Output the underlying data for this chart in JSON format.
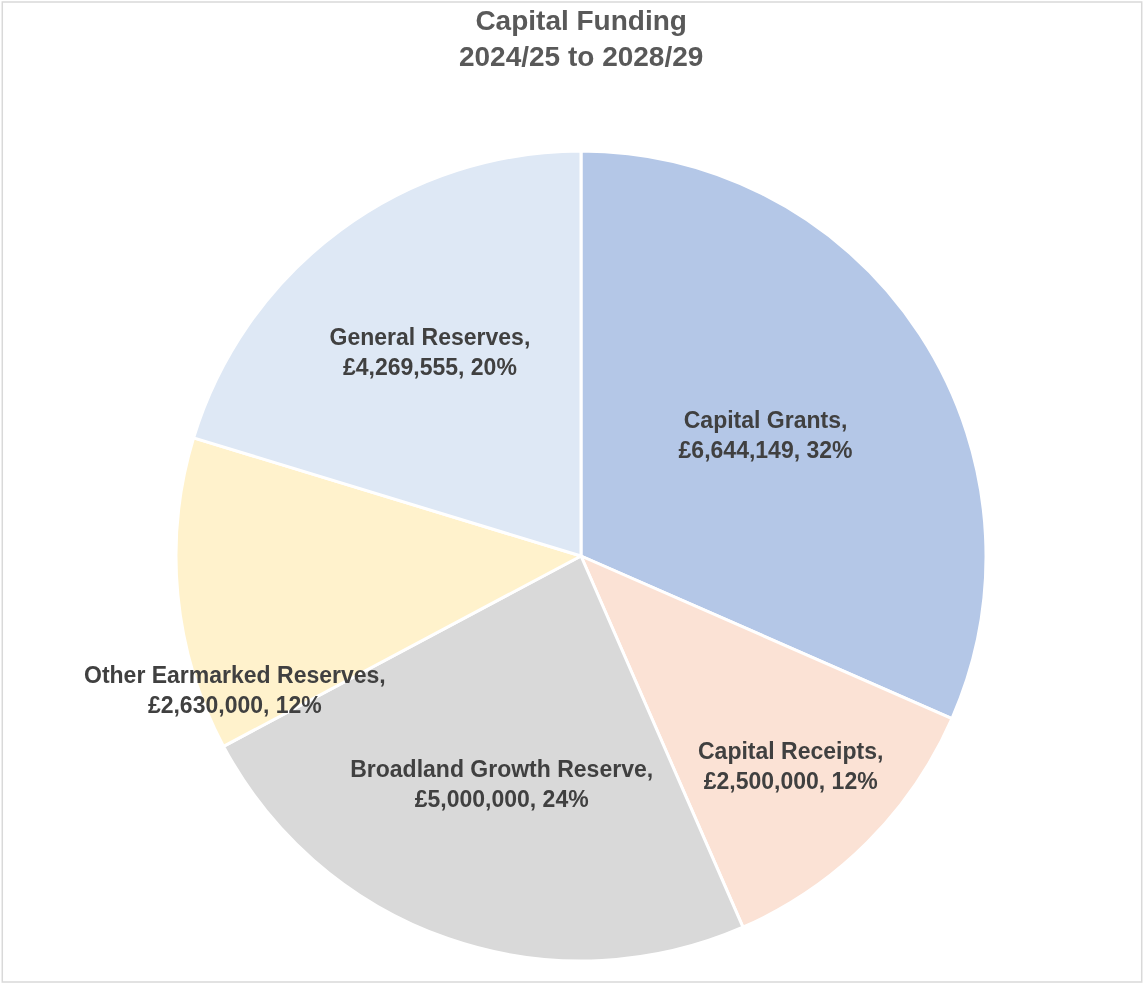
{
  "chart_data": {
    "type": "pie",
    "title": "Capital Funding\n2024/25 to 2028/29",
    "categories": [
      "Capital Grants",
      "Capital Receipts",
      "Broadland Growth Reserve",
      "Other Earmarked Reserves",
      "General Reserves"
    ],
    "values": [
      6644149,
      2500000,
      5000000,
      2630000,
      4269555
    ],
    "value_labels": [
      ",\n£6,644,149, 32%",
      ",\n£2,500,000, 12%",
      ",\n£5,000,000, 24%",
      ",\n£2,630,000, 12%",
      ",\n£4,269,555, 20%"
    ],
    "colors": [
      "#b4c7e7",
      "#fbe2d5",
      "#d9d9d9",
      "#fff2cc",
      "#dee8f5"
    ]
  }
}
